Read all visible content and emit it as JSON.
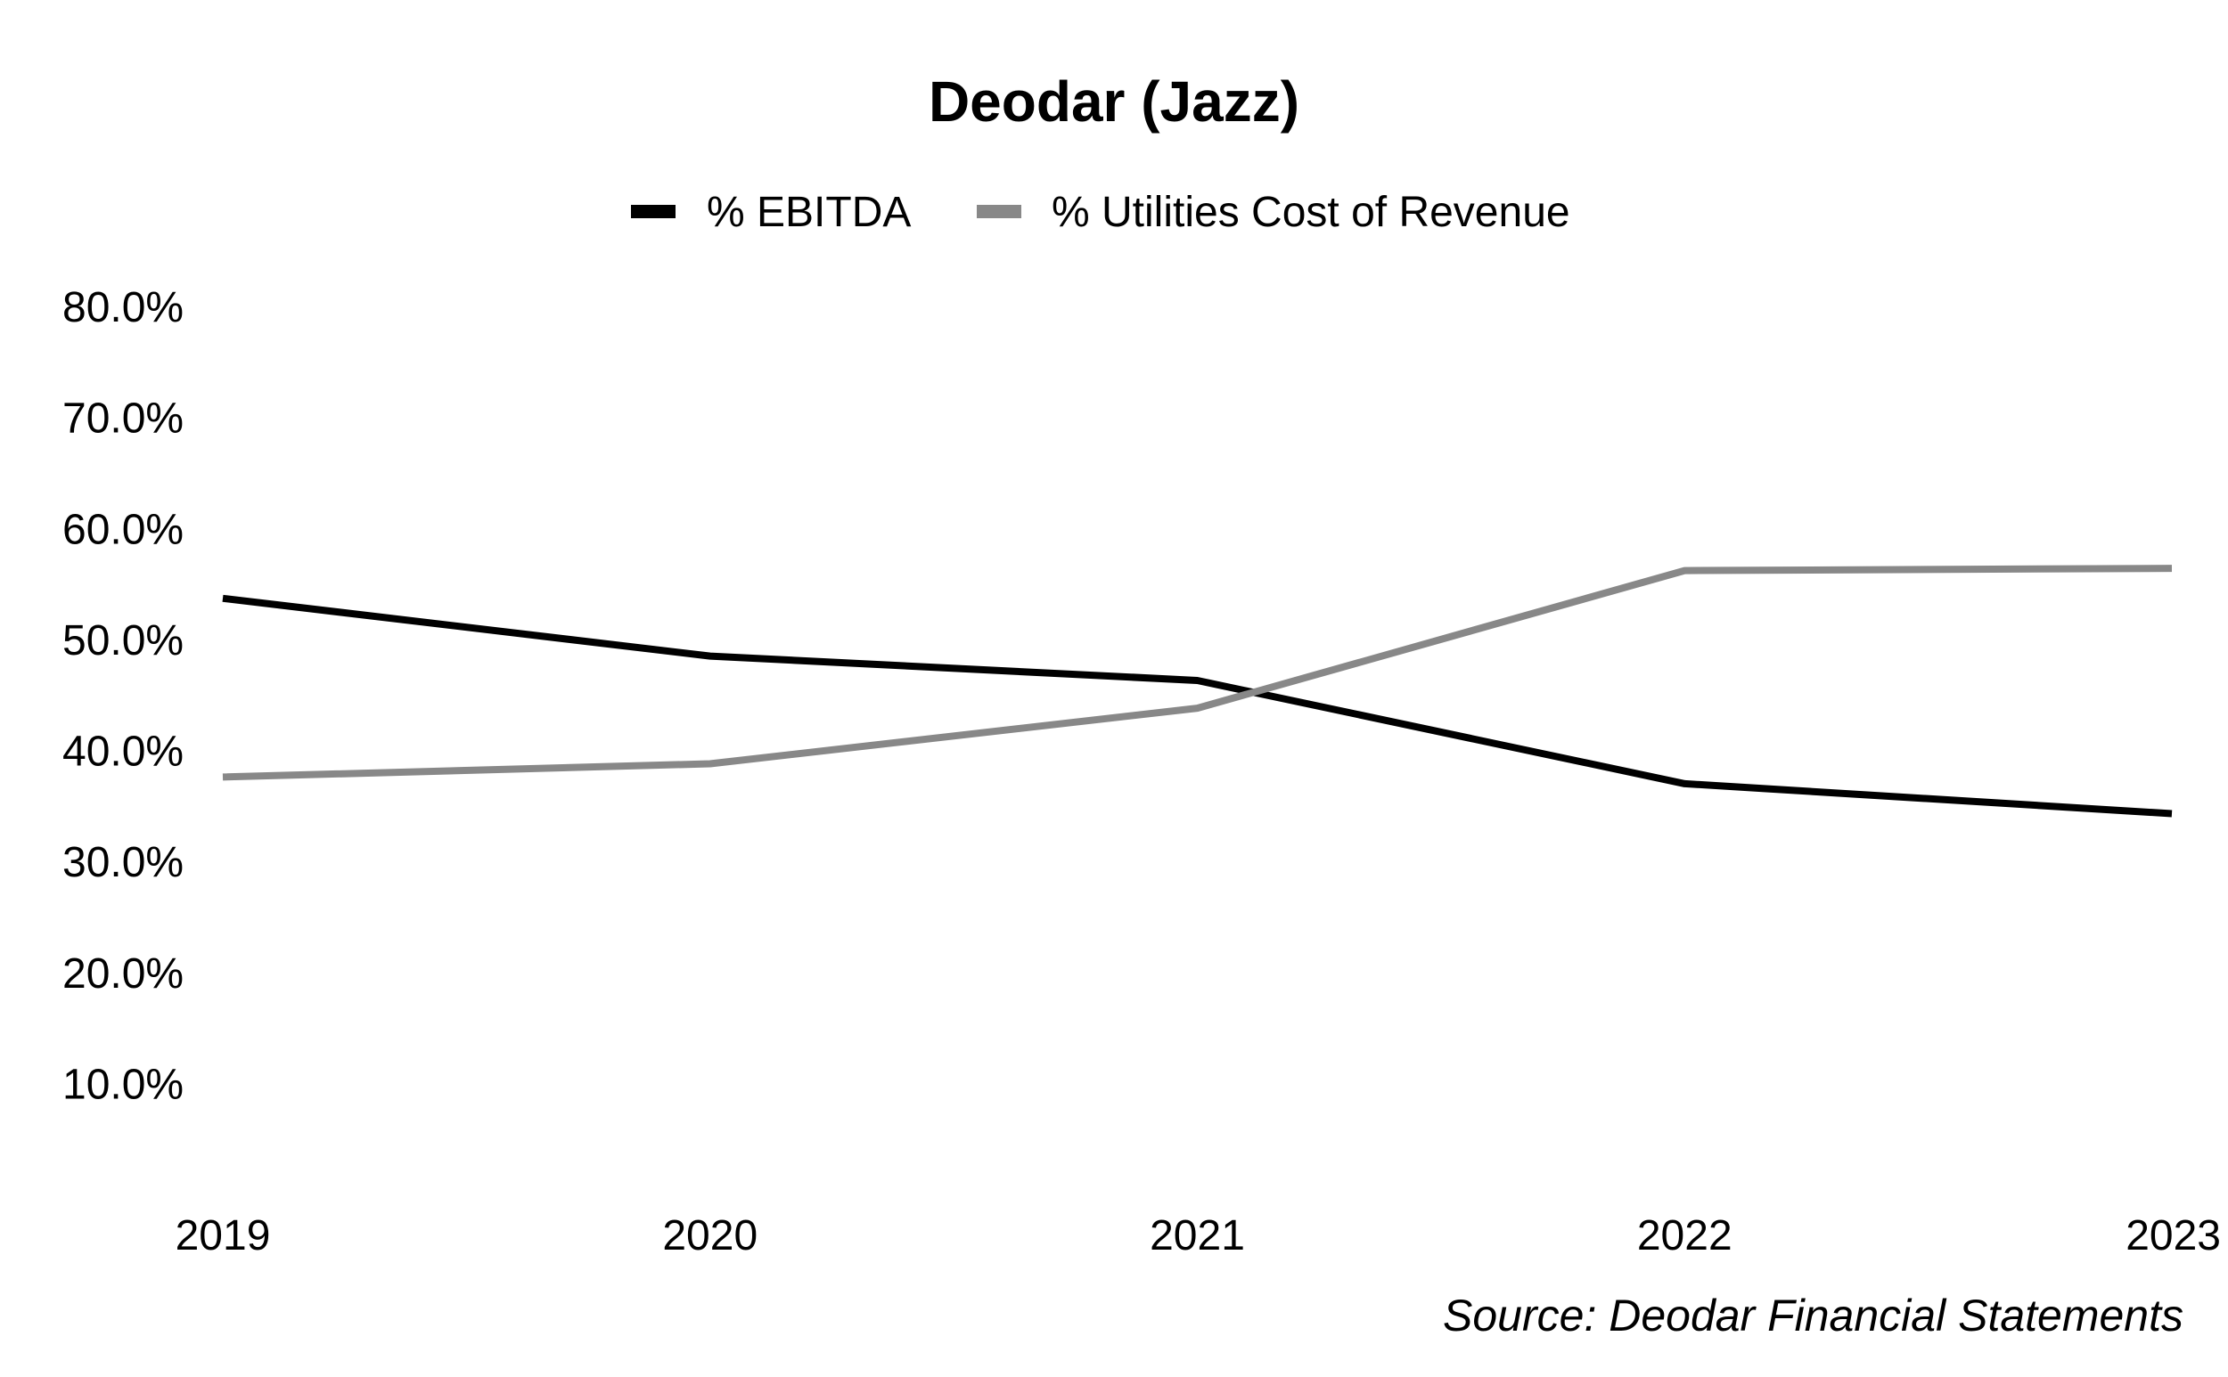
{
  "chart_data": {
    "type": "line",
    "title": "Deodar (Jazz)",
    "source": "Source: Deodar Financial Statements",
    "x": [
      "2019",
      "2020",
      "2021",
      "2022",
      "2023"
    ],
    "xlabel": "",
    "ylabel": "",
    "ylim": [
      0,
      0.8
    ],
    "y_ticks": [
      {
        "value": 0.8,
        "label": "80.0%"
      },
      {
        "value": 0.7,
        "label": "70.0%"
      },
      {
        "value": 0.6,
        "label": "60.0%"
      },
      {
        "value": 0.5,
        "label": "50.0%"
      },
      {
        "value": 0.4,
        "label": "40.0%"
      },
      {
        "value": 0.3,
        "label": "30.0%"
      },
      {
        "value": 0.2,
        "label": "20.0%"
      },
      {
        "value": 0.1,
        "label": "10.0%"
      }
    ],
    "grid": false,
    "legend_position": "top-center",
    "series": [
      {
        "name": "% EBITDA",
        "color": "#000000",
        "values": [
          0.537,
          0.485,
          0.463,
          0.37,
          0.343
        ]
      },
      {
        "name": "% Utilities Cost of Revenue",
        "color": "#888888",
        "values": [
          0.376,
          0.388,
          0.438,
          0.562,
          0.564
        ]
      }
    ]
  }
}
